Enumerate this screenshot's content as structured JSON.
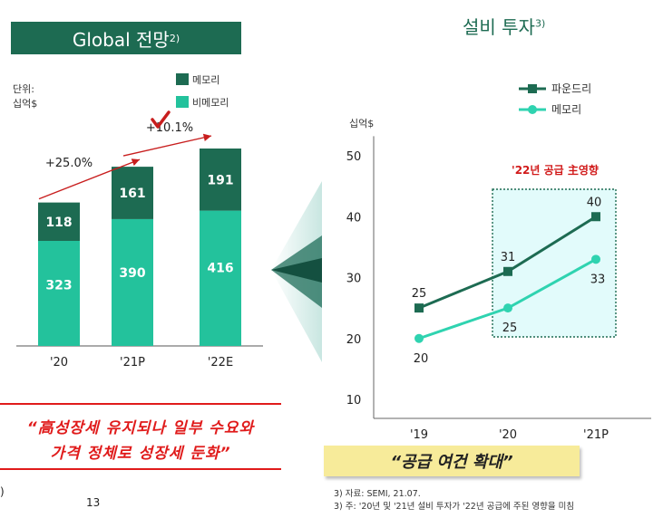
{
  "left": {
    "title": "Global 전망",
    "title_sup": "2)",
    "unit_line1": "단위:",
    "unit_line2": "십억$",
    "quote_line1": "“高성장세 유지되나 일부 수요와",
    "quote_line2": "가격 정체로 성장세 둔화”",
    "page_number": "13",
    "left_edge_mark": ")"
  },
  "right": {
    "title": "설비 투자",
    "title_sup": "3)",
    "supply_label": "“공급 여건 확대”",
    "footnote1": "3) 자료: SEMI, 21.07.",
    "footnote2": "3) 주: '20년 및 '21년 설비 투자가 '22년 공급에 주된 영향을 미침"
  },
  "colors": {
    "memory": "#1d6b52",
    "non_memory": "#23c29c",
    "foundry_line": "#1d6b52",
    "memory_line": "#2fd3b0",
    "arrow": "#c81e1e",
    "highlight_box": "#e2fbfb"
  },
  "chart_data": [
    {
      "type": "bar",
      "stacked": true,
      "categories": [
        "'20",
        "'21P",
        "'22E"
      ],
      "series": [
        {
          "name": "비메모리",
          "values": [
            323,
            390,
            416
          ]
        },
        {
          "name": "메모리",
          "values": [
            118,
            161,
            191
          ]
        }
      ],
      "annotations": [
        "+25.0%",
        "+10.1%"
      ],
      "ylabel": "단위: 십억$",
      "legend_position": "top-right"
    },
    {
      "type": "line",
      "x": [
        "'19",
        "'20",
        "'21P"
      ],
      "series": [
        {
          "name": "파운드리",
          "values": [
            25,
            31,
            40
          ]
        },
        {
          "name": "메모리",
          "values": [
            20,
            25,
            33
          ]
        }
      ],
      "ylabel": "십억$",
      "yticks": [
        10,
        20,
        30,
        40,
        50
      ],
      "ylim": [
        5,
        55
      ],
      "highlight_label": "'22년 공급 主영향",
      "legend_position": "top-right"
    }
  ]
}
